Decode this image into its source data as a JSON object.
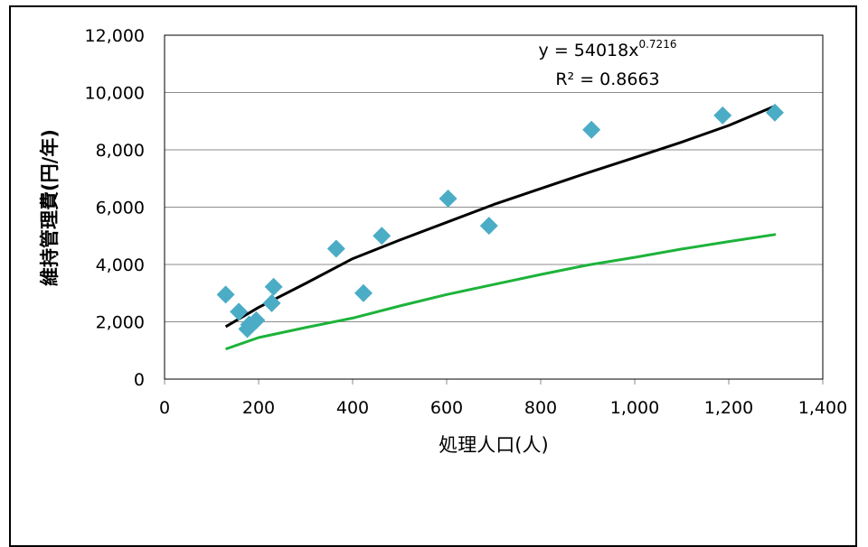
{
  "chart_data": {
    "type": "scatter",
    "title": "",
    "xlabel": "処理人口(人)",
    "ylabel": "維持管理費(円/年)",
    "xlim": [
      0,
      1400
    ],
    "ylim": [
      0,
      12000
    ],
    "x_ticks": [
      "0",
      "200",
      "400",
      "600",
      "800",
      "1,000",
      "1,200",
      "1,400"
    ],
    "y_ticks": [
      "0",
      "2,000",
      "4,000",
      "6,000",
      "8,000",
      "10,000",
      "12,000"
    ],
    "grid": true,
    "legend": "none",
    "series": [
      {
        "kind": "scatter",
        "marker": "diamond",
        "color": "#4BACC6",
        "points": [
          [
            130,
            2950
          ],
          [
            158,
            2350
          ],
          [
            176,
            1750
          ],
          [
            180,
            1900
          ],
          [
            195,
            2050
          ],
          [
            228,
            2650
          ],
          [
            232,
            3220
          ],
          [
            365,
            4550
          ],
          [
            423,
            3000
          ],
          [
            462,
            5000
          ],
          [
            603,
            6300
          ],
          [
            690,
            5350
          ],
          [
            908,
            8700
          ],
          [
            1187,
            9200
          ],
          [
            1298,
            9300
          ]
        ]
      },
      {
        "kind": "line",
        "color": "#000000",
        "x": [
          130,
          200,
          300,
          400,
          500,
          600,
          700,
          800,
          900,
          1000,
          1100,
          1200,
          1300
        ],
        "y": [
          1830,
          2500,
          3340,
          4200,
          4850,
          5470,
          6090,
          6650,
          7200,
          7730,
          8270,
          8850,
          9540
        ]
      },
      {
        "kind": "line",
        "color": "#1DB33A",
        "x": [
          130,
          200,
          300,
          400,
          500,
          600,
          700,
          800,
          900,
          1000,
          1100,
          1200,
          1300
        ],
        "y": [
          1050,
          1450,
          1800,
          2130,
          2550,
          2950,
          3300,
          3650,
          3980,
          4250,
          4540,
          4800,
          5050
        ]
      }
    ],
    "annotation": {
      "equation_base": "y = 54018x",
      "equation_exp": "0.7216",
      "r2_label": "R² = 0.8663"
    }
  }
}
